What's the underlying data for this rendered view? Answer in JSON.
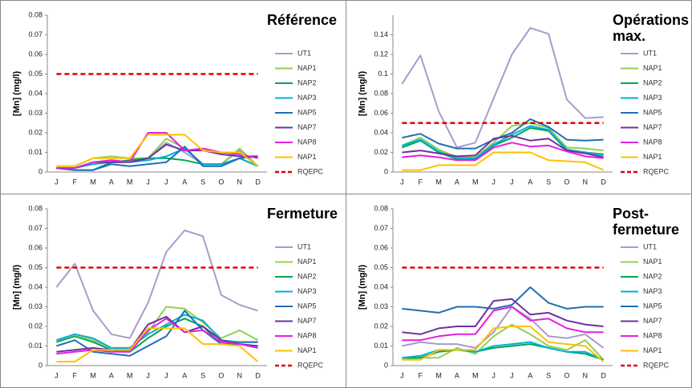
{
  "chart_data": [
    {
      "type": "line",
      "title": "Référence",
      "y_label": "[Mn] (mg/l)",
      "categories": [
        "J",
        "F",
        "M",
        "A",
        "M",
        "J",
        "J",
        "A",
        "S",
        "O",
        "N",
        "D"
      ],
      "ylim": [
        0,
        0.08
      ],
      "yticks": [
        0,
        0.01,
        0.02,
        0.03,
        0.04,
        0.05,
        0.06,
        0.07,
        0.08
      ],
      "grid": false,
      "series": [
        {
          "name": "UT1",
          "color": "#a99bc9",
          "values": [
            0.002,
            0.002,
            0.005,
            0.006,
            0.005,
            0.007,
            0.015,
            0.01,
            0.004,
            0.004,
            0.011,
            0.003
          ]
        },
        {
          "name": "NAP1",
          "color": "#92d050",
          "values": [
            0.003,
            0.003,
            0.007,
            0.008,
            0.007,
            0.007,
            0.017,
            0.012,
            0.004,
            0.004,
            0.012,
            0.003
          ]
        },
        {
          "name": "NAP2",
          "color": "#00a550",
          "values": [
            0.002,
            0.001,
            0.001,
            0.005,
            0.006,
            0.007,
            0.007,
            0.006,
            0.004,
            0.004,
            0.007,
            0.003
          ]
        },
        {
          "name": "NAP3",
          "color": "#00b0d8",
          "values": [
            0.002,
            0.002,
            0.004,
            0.005,
            0.005,
            0.006,
            0.008,
            0.012,
            0.004,
            0.004,
            0.007,
            0.003
          ]
        },
        {
          "name": "NAP5",
          "color": "#1f6fb5",
          "values": [
            0.002,
            0.001,
            0.001,
            0.004,
            0.003,
            0.004,
            0.005,
            0.013,
            0.003,
            0.003,
            0.007,
            0.008
          ]
        },
        {
          "name": "NAP7",
          "color": "#7030a0",
          "values": [
            0.002,
            0.002,
            0.005,
            0.005,
            0.005,
            0.007,
            0.014,
            0.011,
            0.011,
            0.009,
            0.008,
            0.008
          ]
        },
        {
          "name": "NAP8",
          "color": "#e020e0",
          "values": [
            0.002,
            0.002,
            0.005,
            0.006,
            0.005,
            0.02,
            0.02,
            0.011,
            0.012,
            0.01,
            0.009,
            0.007
          ]
        },
        {
          "name": "NAP1",
          "color": "#ffc000",
          "values": [
            0.003,
            0.003,
            0.007,
            0.007,
            0.007,
            0.019,
            0.019,
            0.019,
            0.011,
            0.01,
            0.01,
            0.003
          ]
        },
        {
          "name": "RQEPC",
          "color": "#e00000",
          "dash": true,
          "values": [
            0.05,
            0.05,
            0.05,
            0.05,
            0.05,
            0.05,
            0.05,
            0.05,
            0.05,
            0.05,
            0.05,
            0.05
          ]
        }
      ]
    },
    {
      "type": "line",
      "title": "Opérations max.",
      "y_label": "[Mn] (mg/l)",
      "categories": [
        "J",
        "F",
        "M",
        "A",
        "M",
        "J",
        "J",
        "A",
        "S",
        "O",
        "N",
        "D"
      ],
      "ylim": [
        0,
        0.16
      ],
      "yticks": [
        0,
        0.02,
        0.04,
        0.06,
        0.08,
        0.1,
        0.12,
        0.14
      ],
      "grid": false,
      "series": [
        {
          "name": "UT1",
          "color": "#a99bc9",
          "values": [
            0.09,
            0.119,
            0.062,
            0.025,
            0.03,
            0.075,
            0.12,
            0.147,
            0.141,
            0.074,
            0.055,
            0.056
          ]
        },
        {
          "name": "NAP1",
          "color": "#92d050",
          "values": [
            0.027,
            0.035,
            0.023,
            0.015,
            0.015,
            0.03,
            0.047,
            0.05,
            0.045,
            0.025,
            0.024,
            0.022
          ]
        },
        {
          "name": "NAP2",
          "color": "#00a550",
          "values": [
            0.025,
            0.032,
            0.02,
            0.013,
            0.013,
            0.027,
            0.035,
            0.045,
            0.042,
            0.022,
            0.02,
            0.018
          ]
        },
        {
          "name": "NAP3",
          "color": "#00b0d8",
          "values": [
            0.027,
            0.033,
            0.021,
            0.014,
            0.014,
            0.028,
            0.038,
            0.047,
            0.043,
            0.023,
            0.02,
            0.017
          ]
        },
        {
          "name": "NAP5",
          "color": "#1f6fb5",
          "values": [
            0.035,
            0.039,
            0.029,
            0.024,
            0.024,
            0.033,
            0.04,
            0.054,
            0.046,
            0.033,
            0.032,
            0.033
          ]
        },
        {
          "name": "NAP7",
          "color": "#7030a0",
          "values": [
            0.02,
            0.022,
            0.019,
            0.016,
            0.017,
            0.034,
            0.037,
            0.032,
            0.034,
            0.022,
            0.019,
            0.015
          ]
        },
        {
          "name": "NAP8",
          "color": "#e020e0",
          "values": [
            0.015,
            0.017,
            0.015,
            0.012,
            0.012,
            0.025,
            0.03,
            0.026,
            0.027,
            0.021,
            0.016,
            0.014
          ]
        },
        {
          "name": "NAP1",
          "color": "#ffc000",
          "values": [
            0.002,
            0.002,
            0.007,
            0.007,
            0.007,
            0.02,
            0.02,
            0.02,
            0.012,
            0.011,
            0.01,
            0.002
          ]
        },
        {
          "name": "RQEPC",
          "color": "#e00000",
          "dash": true,
          "values": [
            0.05,
            0.05,
            0.05,
            0.05,
            0.05,
            0.05,
            0.05,
            0.05,
            0.05,
            0.05,
            0.05,
            0.05
          ]
        }
      ]
    },
    {
      "type": "line",
      "title": "Fermeture",
      "y_label": "[Mn] (mg/l)",
      "categories": [
        "J",
        "F",
        "M",
        "A",
        "M",
        "J",
        "J",
        "A",
        "S",
        "O",
        "N",
        "D"
      ],
      "ylim": [
        0,
        0.08
      ],
      "yticks": [
        0,
        0.01,
        0.02,
        0.03,
        0.04,
        0.05,
        0.06,
        0.07,
        0.08
      ],
      "grid": false,
      "series": [
        {
          "name": "UT1",
          "color": "#a99bc9",
          "values": [
            0.04,
            0.052,
            0.028,
            0.016,
            0.014,
            0.032,
            0.058,
            0.069,
            0.066,
            0.036,
            0.031,
            0.028
          ]
        },
        {
          "name": "NAP1",
          "color": "#92d050",
          "values": [
            0.013,
            0.016,
            0.013,
            0.009,
            0.008,
            0.017,
            0.03,
            0.029,
            0.022,
            0.014,
            0.018,
            0.013
          ]
        },
        {
          "name": "NAP2",
          "color": "#00a550",
          "values": [
            0.012,
            0.015,
            0.012,
            0.008,
            0.007,
            0.014,
            0.02,
            0.024,
            0.02,
            0.011,
            0.011,
            0.01
          ]
        },
        {
          "name": "NAP3",
          "color": "#00b0d8",
          "values": [
            0.013,
            0.016,
            0.014,
            0.009,
            0.009,
            0.016,
            0.021,
            0.026,
            0.023,
            0.013,
            0.012,
            0.012
          ]
        },
        {
          "name": "NAP5",
          "color": "#1f6fb5",
          "values": [
            0.01,
            0.013,
            0.007,
            0.006,
            0.005,
            0.01,
            0.015,
            0.028,
            0.018,
            0.011,
            0.012,
            0.012
          ]
        },
        {
          "name": "NAP7",
          "color": "#7030a0",
          "values": [
            0.007,
            0.008,
            0.009,
            0.008,
            0.008,
            0.021,
            0.025,
            0.017,
            0.02,
            0.013,
            0.011,
            0.01
          ]
        },
        {
          "name": "NAP8",
          "color": "#e020e0",
          "values": [
            0.006,
            0.007,
            0.008,
            0.007,
            0.007,
            0.018,
            0.024,
            0.017,
            0.018,
            0.012,
            0.011,
            0.009
          ]
        },
        {
          "name": "NAP1",
          "color": "#ffc000",
          "values": [
            0.002,
            0.002,
            0.008,
            0.008,
            0.008,
            0.019,
            0.019,
            0.019,
            0.011,
            0.011,
            0.01,
            0.002
          ]
        },
        {
          "name": "RQEPC",
          "color": "#e00000",
          "dash": true,
          "values": [
            0.05,
            0.05,
            0.05,
            0.05,
            0.05,
            0.05,
            0.05,
            0.05,
            0.05,
            0.05,
            0.05,
            0.05
          ]
        }
      ]
    },
    {
      "type": "line",
      "title": "Post-fermeture",
      "y_label": "[Mn] (mg/l)",
      "categories": [
        "J",
        "F",
        "M",
        "A",
        "M",
        "J",
        "J",
        "A",
        "S",
        "O",
        "N",
        "D"
      ],
      "ylim": [
        0,
        0.08
      ],
      "yticks": [
        0,
        0.01,
        0.02,
        0.03,
        0.04,
        0.05,
        0.06,
        0.07,
        0.08
      ],
      "grid": false,
      "series": [
        {
          "name": "UT1",
          "color": "#a99bc9",
          "values": [
            0.01,
            0.012,
            0.011,
            0.011,
            0.009,
            0.017,
            0.03,
            0.024,
            0.015,
            0.014,
            0.016,
            0.009
          ]
        },
        {
          "name": "NAP1",
          "color": "#92d050",
          "values": [
            0.003,
            0.004,
            0.004,
            0.009,
            0.006,
            0.015,
            0.021,
            0.016,
            0.01,
            0.008,
            0.013,
            0.003
          ]
        },
        {
          "name": "NAP2",
          "color": "#00a550",
          "values": [
            0.004,
            0.004,
            0.007,
            0.008,
            0.007,
            0.009,
            0.01,
            0.011,
            0.009,
            0.007,
            0.006,
            0.003
          ]
        },
        {
          "name": "NAP3",
          "color": "#00b0d8",
          "values": [
            0.004,
            0.005,
            0.008,
            0.008,
            0.007,
            0.01,
            0.011,
            0.012,
            0.009,
            0.007,
            0.007,
            0.003
          ]
        },
        {
          "name": "NAP5",
          "color": "#1f6fb5",
          "values": [
            0.029,
            0.028,
            0.027,
            0.03,
            0.03,
            0.029,
            0.031,
            0.04,
            0.032,
            0.029,
            0.03,
            0.03
          ]
        },
        {
          "name": "NAP7",
          "color": "#7030a0",
          "values": [
            0.017,
            0.016,
            0.019,
            0.02,
            0.02,
            0.033,
            0.034,
            0.026,
            0.027,
            0.023,
            0.021,
            0.02
          ]
        },
        {
          "name": "NAP8",
          "color": "#e020e0",
          "values": [
            0.013,
            0.013,
            0.015,
            0.016,
            0.016,
            0.028,
            0.03,
            0.023,
            0.024,
            0.019,
            0.017,
            0.017
          ]
        },
        {
          "name": "NAP1",
          "color": "#ffc000",
          "values": [
            0.003,
            0.003,
            0.008,
            0.008,
            0.008,
            0.019,
            0.02,
            0.02,
            0.012,
            0.011,
            0.01,
            0.002
          ]
        },
        {
          "name": "RQEPC",
          "color": "#e00000",
          "dash": true,
          "values": [
            0.05,
            0.05,
            0.05,
            0.05,
            0.05,
            0.05,
            0.05,
            0.05,
            0.05,
            0.05,
            0.05,
            0.05
          ]
        }
      ]
    }
  ]
}
